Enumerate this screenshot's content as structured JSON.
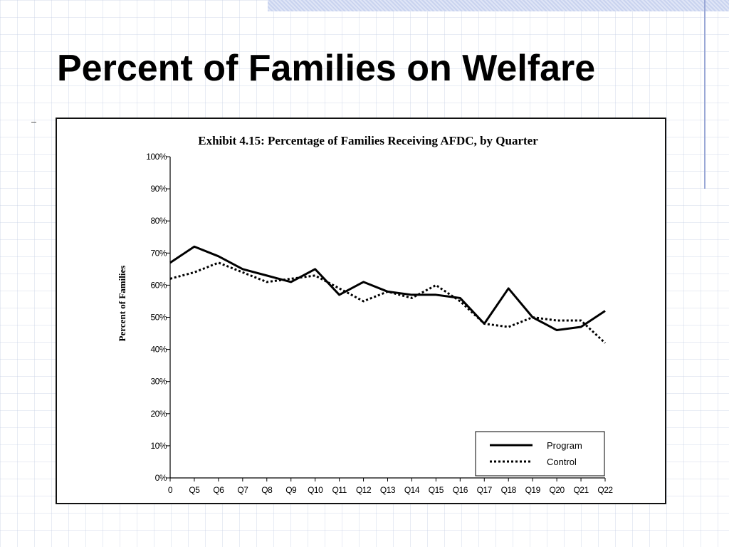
{
  "slide": {
    "title": "Percent of Families on Welfare"
  },
  "colors": {
    "background": "#ffffff",
    "grid": "#c8d0e6",
    "series": "#000000"
  },
  "chart_data": {
    "type": "line",
    "title": "Exhibit 4.15:  Percentage of Families Receiving AFDC, by Quarter",
    "xlabel": "",
    "ylabel": "Percent of Families",
    "categories": [
      "0",
      "Q5",
      "Q6",
      "Q7",
      "Q8",
      "Q9",
      "Q10",
      "Q11",
      "Q12",
      "Q13",
      "Q14",
      "Q15",
      "Q16",
      "Q17",
      "Q18",
      "Q19",
      "Q20",
      "Q21",
      "Q22"
    ],
    "x_tick_labels": [
      "0",
      "Q5",
      "Q6",
      "Q7",
      "Q8",
      "Q9",
      "Q10",
      "Q11",
      "Q12",
      "Q13",
      "Q14",
      "Q15",
      "Q16",
      "Q17",
      "Q18",
      "Q19",
      "Q20",
      "Q21",
      "Q22"
    ],
    "y_tick_labels": [
      "0%",
      "10%",
      "20%",
      "30%",
      "40%",
      "50%",
      "60%",
      "70%",
      "80%",
      "90%",
      "100%"
    ],
    "ylim": [
      0,
      100
    ],
    "grid": false,
    "legend": "bottom-right",
    "series": [
      {
        "name": "Program",
        "style": "solid",
        "values": [
          67,
          72,
          69,
          65,
          63,
          61,
          65,
          57,
          61,
          58,
          57,
          57,
          56,
          48,
          59,
          50,
          46,
          47,
          52
        ]
      },
      {
        "name": "Control",
        "style": "dotted",
        "values": [
          62,
          64,
          67,
          64,
          61,
          62,
          63,
          59,
          55,
          58,
          56,
          60,
          55,
          48,
          47,
          50,
          49,
          49,
          42
        ]
      }
    ]
  }
}
